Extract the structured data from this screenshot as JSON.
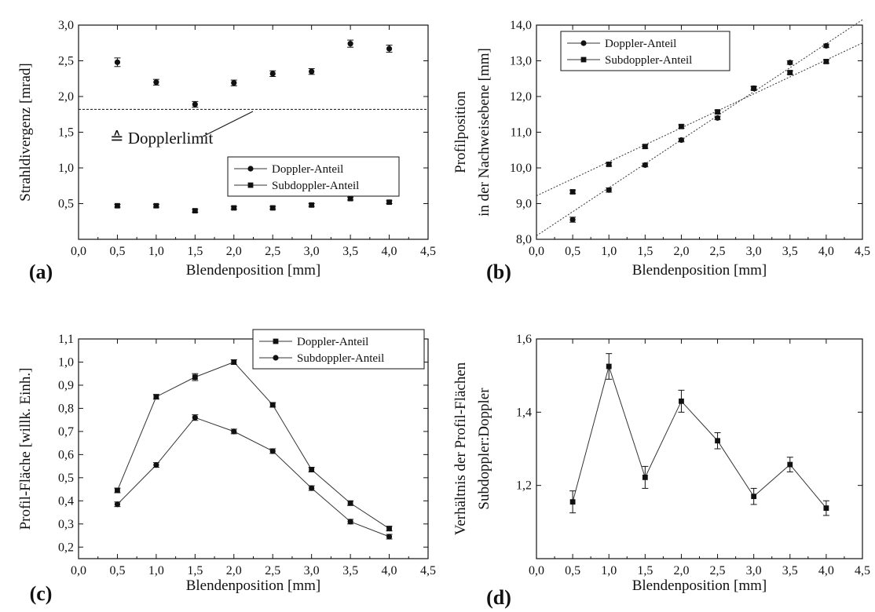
{
  "chart_data": [
    {
      "panel": "(a)",
      "type": "scatter",
      "xlabel": "Blendenposition [mm]",
      "ylabel": "Strahldivergenz [mrad]",
      "xlim": [
        0,
        4.5
      ],
      "ylim": [
        0,
        3.0
      ],
      "xticks": [
        0,
        0.5,
        1,
        1.5,
        2,
        2.5,
        3,
        3.5,
        4,
        4.5
      ],
      "yticks": [
        0.5,
        1.0,
        1.5,
        2.0,
        2.5,
        3.0
      ],
      "xtick_labels": [
        "0,0",
        "0,5",
        "1,0",
        "1,5",
        "2,0",
        "2,5",
        "3,0",
        "3,5",
        "4,0",
        "4,5"
      ],
      "ytick_labels": [
        "0,5",
        "1,0",
        "1,5",
        "2,0",
        "2,5",
        "3,0"
      ],
      "grid": false,
      "legend_position": "lower-right",
      "series": [
        {
          "name": "Doppler-Anteil",
          "marker": "circle",
          "lines": false,
          "x": [
            0.5,
            1,
            1.5,
            2,
            2.5,
            3,
            3.5,
            4
          ],
          "y": [
            2.48,
            2.2,
            1.89,
            2.19,
            2.32,
            2.35,
            2.74,
            2.67
          ],
          "err": [
            0.06,
            0.04,
            0.04,
            0.04,
            0.04,
            0.04,
            0.05,
            0.05
          ]
        },
        {
          "name": "Subdoppler-Anteil",
          "marker": "square",
          "lines": false,
          "x": [
            0.5,
            1,
            1.5,
            2,
            2.5,
            3,
            3.5,
            4
          ],
          "y": [
            0.47,
            0.47,
            0.4,
            0.44,
            0.44,
            0.48,
            0.57,
            0.52
          ],
          "err": [
            0.02,
            0.02,
            0.02,
            0.02,
            0.02,
            0.02,
            0.02,
            0.02
          ]
        }
      ],
      "reference_line": {
        "y": 1.82
      },
      "annotations": [
        {
          "text": "≙ Dopplerlimit"
        }
      ]
    },
    {
      "panel": "(b)",
      "type": "scatter",
      "xlabel": "Blendenposition [mm]",
      "ylabel": "Profilposition",
      "ylabel2": "in der Nachweisebene [mm]",
      "xlim": [
        0,
        4.5
      ],
      "ylim": [
        8,
        14
      ],
      "xticks": [
        0,
        0.5,
        1,
        1.5,
        2,
        2.5,
        3,
        3.5,
        4,
        4.5
      ],
      "yticks": [
        8,
        9,
        10,
        11,
        12,
        13,
        14
      ],
      "xtick_labels": [
        "0,0",
        "0,5",
        "1,0",
        "1,5",
        "2,0",
        "2,5",
        "3,0",
        "3,5",
        "4,0",
        "4,5"
      ],
      "ytick_labels": [
        "8,0",
        "9,0",
        "10,0",
        "11,0",
        "12,0",
        "13,0",
        "14,0"
      ],
      "grid": false,
      "legend_position": "top-left",
      "series": [
        {
          "name": "Doppler-Anteil",
          "marker": "circle",
          "lines": false,
          "x": [
            0.5,
            1,
            1.5,
            2,
            2.5,
            3,
            3.5,
            4
          ],
          "y": [
            8.55,
            9.38,
            10.08,
            10.78,
            11.4,
            12.23,
            12.95,
            13.42
          ],
          "err": [
            0.07,
            0.06,
            0.05,
            0.05,
            0.05,
            0.05,
            0.05,
            0.05
          ],
          "fit": {
            "x0": 0,
            "y0": 8.1,
            "x1": 4.5,
            "y1": 14.15
          }
        },
        {
          "name": "Subdoppler-Anteil",
          "marker": "square",
          "lines": false,
          "x": [
            0.5,
            1,
            1.5,
            2,
            2.5,
            3,
            3.5,
            4
          ],
          "y": [
            9.33,
            10.1,
            10.6,
            11.16,
            11.57,
            12.23,
            12.67,
            12.98
          ],
          "err": [
            0.05,
            0.05,
            0.05,
            0.05,
            0.05,
            0.05,
            0.05,
            0.05
          ],
          "fit": {
            "x0": 0,
            "y0": 9.22,
            "x1": 4.5,
            "y1": 13.5
          }
        }
      ]
    },
    {
      "panel": "(c)",
      "type": "line",
      "xlabel": "Blendenposition [mm]",
      "ylabel": "Profil-Fläche [willk. Einh.]",
      "xlim": [
        0,
        4.5
      ],
      "ylim": [
        0.15,
        1.1
      ],
      "xticks": [
        0,
        0.5,
        1,
        1.5,
        2,
        2.5,
        3,
        3.5,
        4,
        4.5
      ],
      "yticks": [
        0.2,
        0.3,
        0.4,
        0.5,
        0.6,
        0.7,
        0.8,
        0.9,
        1.0,
        1.1
      ],
      "xtick_labels": [
        "0,0",
        "0,5",
        "1,0",
        "1,5",
        "2,0",
        "2,5",
        "3,0",
        "3,5",
        "4,0",
        "4,5"
      ],
      "ytick_labels": [
        "0,2",
        "0,3",
        "0,4",
        "0,5",
        "0,6",
        "0,7",
        "0,8",
        "0,9",
        "1,0",
        "1,1"
      ],
      "grid": false,
      "legend_position": "top-right",
      "series": [
        {
          "name": "Doppler-Anteil",
          "marker": "square",
          "lines": true,
          "x": [
            0.5,
            1,
            1.5,
            2,
            2.5,
            3,
            3.5,
            4
          ],
          "y": [
            0.445,
            0.85,
            0.935,
            1.0,
            0.815,
            0.535,
            0.39,
            0.28
          ],
          "err": [
            0.01,
            0.01,
            0.015,
            0.01,
            0.01,
            0.01,
            0.01,
            0.01
          ]
        },
        {
          "name": "Subdoppler-Anteil",
          "marker": "circle",
          "lines": true,
          "x": [
            0.5,
            1,
            1.5,
            2,
            2.5,
            3,
            3.5,
            4
          ],
          "y": [
            0.385,
            0.555,
            0.76,
            0.7,
            0.615,
            0.455,
            0.31,
            0.245
          ],
          "err": [
            0.01,
            0.01,
            0.012,
            0.01,
            0.01,
            0.01,
            0.01,
            0.01
          ]
        }
      ]
    },
    {
      "panel": "(d)",
      "type": "line",
      "xlabel": "Blendenposition [mm]",
      "ylabel": "Verhältnis der Profil-Flächen",
      "ylabel2": "Subdoppler:Doppler",
      "xlim": [
        0,
        4.5
      ],
      "ylim": [
        1.0,
        1.6
      ],
      "xticks": [
        0,
        0.5,
        1,
        1.5,
        2,
        2.5,
        3,
        3.5,
        4,
        4.5
      ],
      "yticks": [
        1.2,
        1.4,
        1.6
      ],
      "xtick_labels": [
        "0,0",
        "0,5",
        "1,0",
        "1,5",
        "2,0",
        "2,5",
        "3,0",
        "3,5",
        "4,0",
        "4,5"
      ],
      "ytick_labels": [
        "1,2",
        "1,4",
        "1,6"
      ],
      "grid": false,
      "series": [
        {
          "marker": "square",
          "lines": true,
          "x": [
            0.5,
            1,
            1.5,
            2,
            2.5,
            3,
            3.5,
            4
          ],
          "y": [
            1.155,
            1.525,
            1.222,
            1.43,
            1.322,
            1.17,
            1.257,
            1.138
          ],
          "err": [
            0.03,
            0.035,
            0.03,
            0.03,
            0.022,
            0.022,
            0.02,
            0.02
          ]
        }
      ]
    }
  ]
}
